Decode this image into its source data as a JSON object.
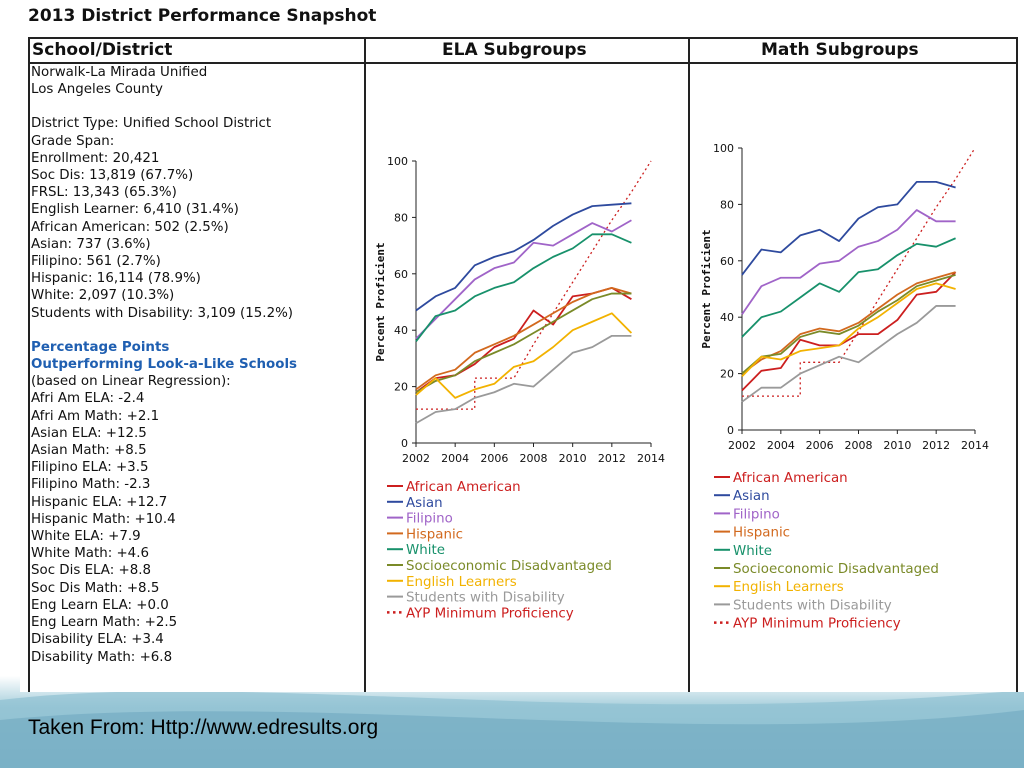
{
  "title": "2013 District Performance Snapshot",
  "columns": {
    "school": "School/District",
    "ela": "ELA Subgroups",
    "math": "Math Subgroups"
  },
  "district_info": [
    "Norwalk-La Mirada Unified",
    "Los Angeles County",
    "",
    "District Type: Unified School District",
    "Grade Span:",
    "Enrollment: 20,421",
    "Soc Dis: 13,819 (67.7%)",
    "FRSL: 13,343 (65.3%)",
    "English Learner: 6,410 (31.4%)",
    "African American: 502 (2.5%)",
    "Asian: 737 (3.6%)",
    "Filipino: 561 (2.7%)",
    "Hispanic: 16,114 (78.9%)",
    "White: 2,097 (10.3%)",
    "Students with Disability: 3,109 (15.2%)",
    ""
  ],
  "pp_heading": [
    "Percentage Points",
    "Outperforming Look-a-Like Schools"
  ],
  "pp_note": "(based on Linear Regression):",
  "pp_items": [
    "Afri Am ELA: -2.4",
    "Afri Am Math: +2.1",
    "Asian ELA: +12.5",
    "Asian Math: +8.5",
    "Filipino ELA: +3.5",
    "Filipino Math: -2.3",
    "Hispanic ELA: +12.7",
    "Hispanic Math: +10.4",
    "White ELA: +7.9",
    "White Math: +4.6",
    "Soc Dis ELA: +8.8",
    "Soc Dis Math: +8.5",
    "Eng Learn ELA: +0.0",
    "Eng Learn Math: +2.5",
    "Disability ELA: +3.4",
    "Disability Math: +6.8"
  ],
  "footer": "Taken From: Http://www.edresults.org",
  "chart_data": [
    {
      "type": "line",
      "name": "ELA Subgroups",
      "ylabel": "Percent Proficient",
      "xlim": [
        2002,
        2014
      ],
      "ylim": [
        0,
        100
      ],
      "x_ticks": [
        2002,
        2004,
        2006,
        2008,
        2010,
        2012,
        2014
      ],
      "y_ticks": [
        0,
        20,
        40,
        60,
        80,
        100
      ],
      "x": [
        2002,
        2003,
        2004,
        2005,
        2006,
        2007,
        2008,
        2009,
        2010,
        2011,
        2012,
        2013
      ],
      "series": [
        {
          "name": "African American",
          "color": "#cc1f1f",
          "values": [
            18,
            23,
            24,
            28,
            34,
            37,
            47,
            42,
            52,
            53,
            55,
            51
          ]
        },
        {
          "name": "Asian",
          "color": "#2e4a9e",
          "values": [
            47,
            52,
            55,
            63,
            66,
            68,
            72,
            77,
            81,
            84,
            84.5,
            85
          ]
        },
        {
          "name": "Filipino",
          "color": "#a064c8",
          "values": [
            37,
            44,
            51,
            58,
            62,
            64,
            71,
            70,
            74,
            78,
            75,
            79
          ]
        },
        {
          "name": "Hispanic",
          "color": "#d2691e",
          "values": [
            19,
            24,
            26,
            32,
            35,
            38,
            42,
            46,
            50,
            53,
            55,
            53
          ]
        },
        {
          "name": "White",
          "color": "#18916b",
          "values": [
            36,
            45,
            47,
            52,
            55,
            57,
            62,
            66,
            69,
            74,
            74,
            71
          ]
        },
        {
          "name": "Socioeconomic Disadvantaged",
          "color": "#7a8a28",
          "values": [
            18,
            22,
            24,
            29,
            32,
            35,
            39,
            43,
            47,
            51,
            53,
            53
          ]
        },
        {
          "name": "English Learners",
          "color": "#f2b200",
          "values": [
            17,
            23,
            16,
            19,
            21,
            27,
            29,
            34,
            40,
            43,
            46,
            39
          ]
        },
        {
          "name": "Students with Disability",
          "color": "#9a9a9a",
          "values": [
            7,
            11,
            12,
            16,
            18,
            21,
            20,
            26,
            32,
            34,
            38,
            38
          ]
        }
      ],
      "ayp": {
        "name": "AYP Minimum Proficiency",
        "color": "#cc1f1f",
        "x": [
          2002,
          2003,
          2003,
          2005,
          2005,
          2006,
          2007,
          2008,
          2009,
          2010,
          2011,
          2012,
          2013,
          2014
        ],
        "values": [
          12,
          12,
          12,
          12,
          23,
          23,
          23,
          35,
          46,
          57,
          68,
          79,
          89,
          100
        ]
      }
    },
    {
      "type": "line",
      "name": "Math Subgroups",
      "ylabel": "Percent Proficient",
      "xlim": [
        2002,
        2014
      ],
      "ylim": [
        0,
        100
      ],
      "x_ticks": [
        2002,
        2004,
        2006,
        2008,
        2010,
        2012,
        2014
      ],
      "y_ticks": [
        0,
        20,
        40,
        60,
        80,
        100
      ],
      "x": [
        2002,
        2003,
        2004,
        2005,
        2006,
        2007,
        2008,
        2009,
        2010,
        2011,
        2012,
        2013
      ],
      "series": [
        {
          "name": "African American",
          "color": "#cc1f1f",
          "values": [
            14,
            21,
            22,
            32,
            30,
            30,
            34,
            34,
            39,
            48,
            49,
            56
          ]
        },
        {
          "name": "Asian",
          "color": "#2e4a9e",
          "values": [
            55,
            64,
            63,
            69,
            71,
            67,
            75,
            79,
            80,
            88,
            88,
            86
          ]
        },
        {
          "name": "Filipino",
          "color": "#a064c8",
          "values": [
            41,
            51,
            54,
            54,
            59,
            60,
            65,
            67,
            71,
            78,
            74,
            74
          ]
        },
        {
          "name": "Hispanic",
          "color": "#d2691e",
          "values": [
            20,
            25,
            28,
            34,
            36,
            35,
            38,
            43,
            48,
            52,
            54,
            56
          ]
        },
        {
          "name": "White",
          "color": "#18916b",
          "values": [
            33,
            40,
            42,
            47,
            52,
            49,
            56,
            57,
            62,
            66,
            65,
            68
          ]
        },
        {
          "name": "Socioeconomic Disadvantaged",
          "color": "#7a8a28",
          "values": [
            20,
            26,
            27,
            33,
            35,
            34,
            37,
            42,
            46,
            51,
            53,
            55
          ]
        },
        {
          "name": "English Learners",
          "color": "#f2b200",
          "values": [
            19,
            26,
            25,
            28,
            29,
            30,
            36,
            40,
            45,
            50,
            52,
            50
          ]
        },
        {
          "name": "Students with Disability",
          "color": "#9a9a9a",
          "values": [
            10,
            15,
            15,
            20,
            23,
            26,
            24,
            29,
            34,
            38,
            44,
            44
          ]
        }
      ],
      "ayp": {
        "name": "AYP Minimum Proficiency",
        "color": "#cc1f1f",
        "x": [
          2002,
          2003,
          2003,
          2005,
          2005,
          2006,
          2007,
          2008,
          2009,
          2010,
          2011,
          2012,
          2013,
          2014
        ],
        "values": [
          12,
          12,
          12,
          12,
          24,
          24,
          24,
          35,
          46,
          57,
          68,
          79,
          89,
          100
        ]
      }
    }
  ]
}
